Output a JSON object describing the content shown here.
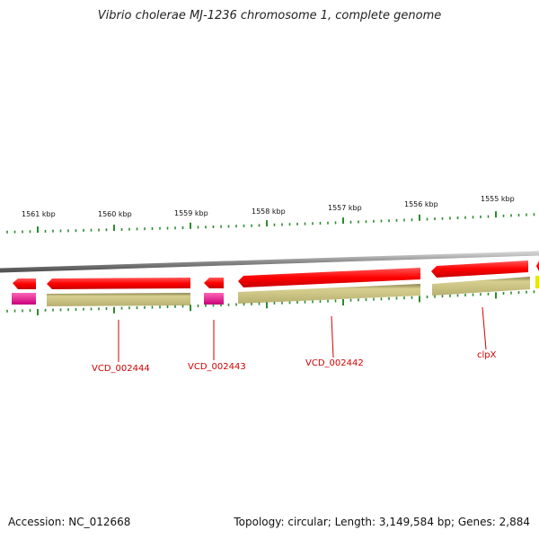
{
  "title": "Vibrio cholerae MJ-1236 chromosome 1, complete genome",
  "footer": {
    "accession": "Accession: NC_012668",
    "summary": "Topology: circular; Length: 3,149,584 bp; Genes: 2,884"
  },
  "colors": {
    "gene_red": "#ff0000",
    "gene_pink": "#e0148a",
    "gene_olive": "#c7bf7a",
    "gene_yellow": "#e6e600",
    "tick_green": "#2e8b2e",
    "backbone": "#888888",
    "label_red": "#d40000"
  },
  "kbp_labels": [
    "1561 kbp",
    "1560 kbp",
    "1559 kbp",
    "1558 kbp",
    "1557 kbp",
    "1556 kbp",
    "1555 kbp"
  ],
  "gene_labels": [
    "VCD_002444",
    "VCD_002443",
    "VCD_002442",
    "clpX"
  ]
}
